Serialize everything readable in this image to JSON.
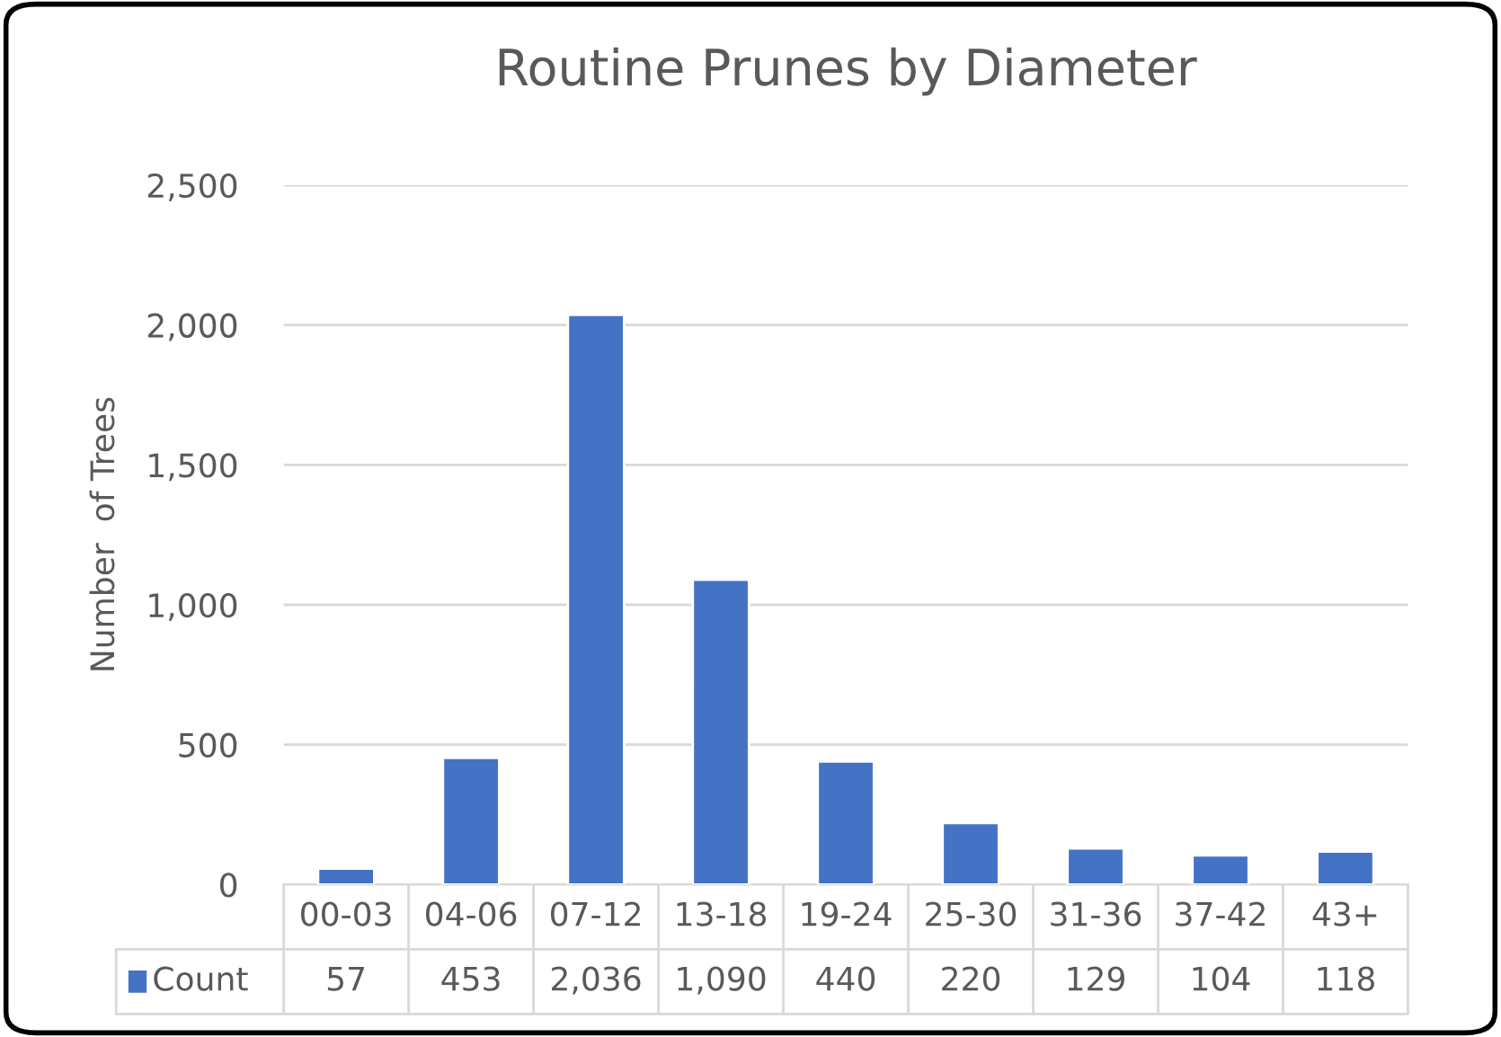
{
  "chart_data": {
    "type": "bar",
    "title": "Routine Prunes by Diameter",
    "ylabel": "Number  of Trees",
    "categories": [
      "00-03",
      "04-06",
      "07-12",
      "13-18",
      "19-24",
      "25-30",
      "31-36",
      "37-42",
      "43+"
    ],
    "series": [
      {
        "name": "Count",
        "color": "#4472c4",
        "values": [
          57,
          453,
          2036,
          1090,
          440,
          220,
          129,
          104,
          118
        ],
        "value_labels": [
          "57",
          "453",
          "2,036",
          "1,090",
          "440",
          "220",
          "129",
          "104",
          "118"
        ]
      }
    ],
    "ylim": [
      0,
      2500
    ],
    "yticks": [
      {
        "value": 0,
        "label": "0"
      },
      {
        "value": 500,
        "label": "500"
      },
      {
        "value": 1000,
        "label": "1,000"
      },
      {
        "value": 1500,
        "label": "1,500"
      },
      {
        "value": 2000,
        "label": "2,000"
      },
      {
        "value": 2500,
        "label": "2,500"
      }
    ],
    "grid": "y",
    "legend": "bottom"
  }
}
